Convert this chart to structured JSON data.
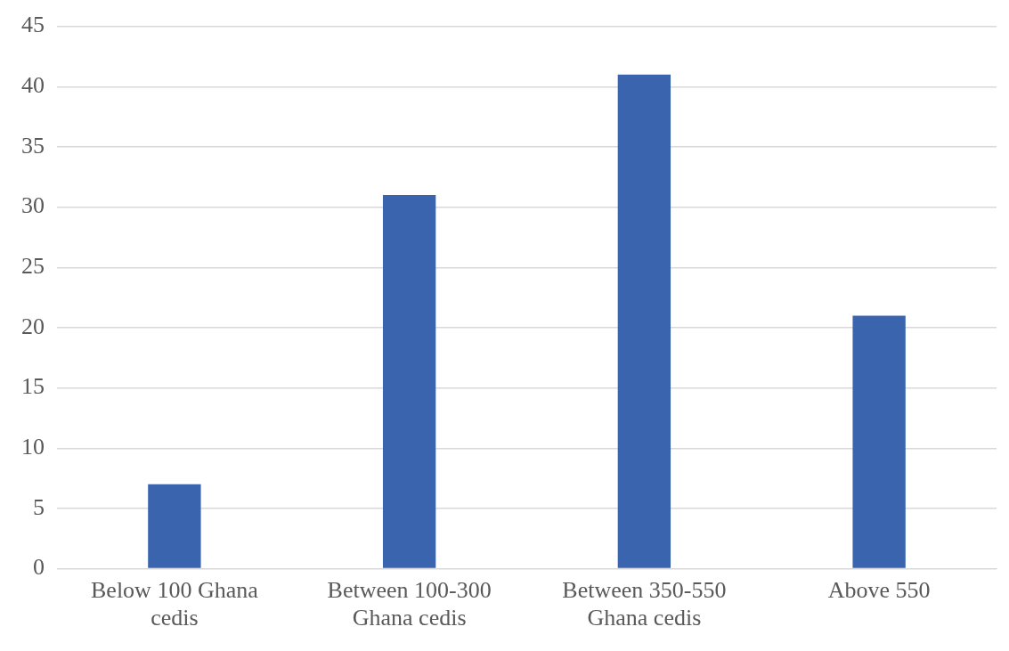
{
  "chart_data": {
    "type": "bar",
    "categories": [
      "Below 100 Ghana cedis",
      "Between 100-300 Ghana cedis",
      "Between 350-550 Ghana cedis",
      "Above 550"
    ],
    "values": [
      7,
      31,
      41,
      21
    ],
    "color": "#3a64ad",
    "ylim": [
      0,
      45
    ],
    "yticks": [
      0,
      5,
      10,
      15,
      20,
      25,
      30,
      35,
      40,
      45
    ],
    "grid": "y",
    "legend": false
  }
}
